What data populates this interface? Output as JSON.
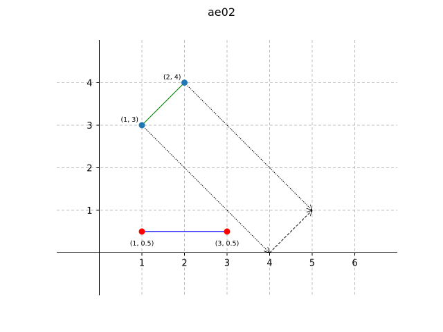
{
  "chart_data": {
    "type": "line",
    "title": "ae02",
    "xlabel": "",
    "ylabel": "",
    "xlim": [
      -1,
      7
    ],
    "ylim": [
      -1,
      5
    ],
    "xticks": [
      1,
      2,
      3,
      4,
      5,
      6
    ],
    "yticks": [
      1,
      2,
      3,
      4
    ],
    "grid": true,
    "grid_style": "dashed",
    "axes_through_origin": true,
    "segments": [
      {
        "from": [
          1,
          0.5
        ],
        "to": [
          3,
          0.5
        ],
        "color": "#0000ff",
        "style": "solid"
      },
      {
        "from": [
          1,
          3
        ],
        "to": [
          2,
          4
        ],
        "color": "#008000",
        "style": "solid"
      }
    ],
    "arrows": [
      {
        "from": [
          1,
          3
        ],
        "to": [
          4,
          0
        ],
        "color": "#000000",
        "style": "dotted"
      },
      {
        "from": [
          2,
          4
        ],
        "to": [
          5,
          1
        ],
        "color": "#000000",
        "style": "dotted"
      },
      {
        "from": [
          4,
          0
        ],
        "to": [
          5,
          1
        ],
        "color": "#000000",
        "style": "dashed"
      }
    ],
    "points": [
      {
        "x": 1,
        "y": 0.5,
        "label": "(1, 0.5)",
        "color": "#ff0000",
        "label_pos": "below"
      },
      {
        "x": 3,
        "y": 0.5,
        "label": "(3, 0.5)",
        "color": "#ff0000",
        "label_pos": "below"
      },
      {
        "x": 1,
        "y": 3,
        "label": "(1, 3)",
        "color": "#1f77b4",
        "label_pos": "upper-left"
      },
      {
        "x": 2,
        "y": 4,
        "label": "(2, 4)",
        "color": "#1f77b4",
        "label_pos": "upper-left"
      }
    ]
  }
}
